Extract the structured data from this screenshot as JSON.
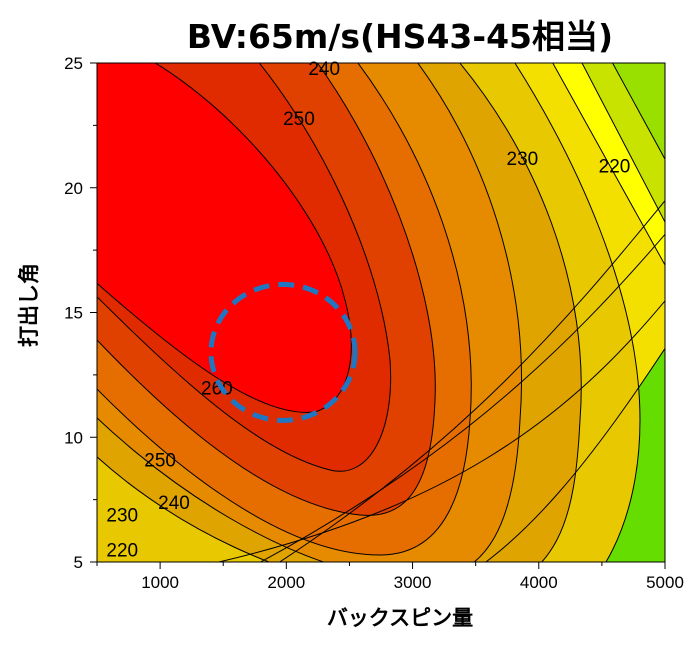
{
  "chart_data": {
    "type": "contour",
    "title": "BV:65m/s(HS43-45相当)",
    "xlabel": "バックスピン量",
    "ylabel": "打出し角",
    "xlim": [
      500,
      5000
    ],
    "ylim": [
      5,
      25
    ],
    "xticks": [
      1000,
      2000,
      3000,
      4000,
      5000
    ],
    "yticks": [
      5,
      10,
      15,
      20,
      25
    ],
    "contour_labels": [
      {
        "text": "240",
        "x": 2300,
        "y": 24.8
      },
      {
        "text": "250",
        "x": 2100,
        "y": 22.8
      },
      {
        "text": "230",
        "x": 3870,
        "y": 21.2
      },
      {
        "text": "220",
        "x": 4600,
        "y": 20.9
      },
      {
        "text": "260",
        "x": 1450,
        "y": 12.0
      },
      {
        "text": "250",
        "x": 1000,
        "y": 9.1
      },
      {
        "text": "240",
        "x": 1110,
        "y": 7.4
      },
      {
        "text": "230",
        "x": 700,
        "y": 6.9
      },
      {
        "text": "220",
        "x": 700,
        "y": 5.5
      }
    ],
    "highlight": {
      "shape": "circle",
      "center_x": 1950,
      "center_y": 13.6,
      "color": "#1f77c4",
      "style": "dashed"
    },
    "colors": {
      "max": "#ff0000",
      "mid": "#e67300",
      "low": "#ffff00",
      "min": "#66dd00"
    }
  }
}
